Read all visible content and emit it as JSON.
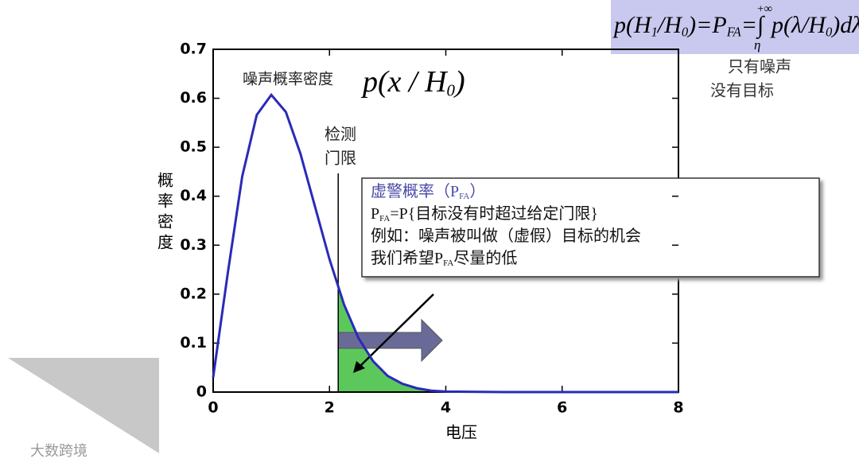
{
  "chart_data": {
    "type": "line",
    "x": [
      0,
      0.25,
      0.5,
      0.75,
      1,
      1.25,
      1.5,
      1.75,
      2,
      2.25,
      2.5,
      2.75,
      3,
      3.25,
      3.5,
      3.75,
      4,
      5,
      6,
      7,
      8
    ],
    "series": [
      {
        "name": "噪声概率密度",
        "color": "#2a2ab8",
        "values": [
          0.03,
          0.242,
          0.441,
          0.566,
          0.607,
          0.572,
          0.487,
          0.379,
          0.271,
          0.179,
          0.11,
          0.063,
          0.033,
          0.017,
          0.008,
          0.003,
          0.001,
          0,
          0,
          0,
          0
        ]
      }
    ],
    "curve_formula": [
      "p(x / H",
      "0",
      ")"
    ],
    "threshold": 2.15,
    "threshold_label": [
      "检测",
      "门限"
    ],
    "area_color": "#5cc85c",
    "xlim": [
      0,
      8
    ],
    "xticks": [
      0,
      2,
      4,
      6,
      8
    ],
    "ylim": [
      0,
      0.7
    ],
    "yticks": [
      0,
      0.1,
      0.2,
      0.3,
      0.4,
      0.5,
      0.6,
      0.7
    ],
    "x_label": "电压",
    "y_label": "概率密度",
    "side_note": [
      "只有噪声",
      "没有目标"
    ],
    "box_lines": [
      [
        "虚警概率（P",
        "FA",
        "）"
      ],
      [
        "P",
        "FA",
        "=P{目标没有时超过给定门限}"
      ],
      [
        "例如：噪声被叫做（虚假）目标的机会"
      ],
      [
        "我们希望P",
        "FA",
        "尽量的低"
      ]
    ],
    "formula": {
      "left": [
        "p(H",
        "1",
        "/H",
        "0",
        ")=P",
        "FA",
        "=∫"
      ],
      "upper": "+∞",
      "lower": "η",
      "right": [
        "p(λ/H",
        "0",
        ")dλ"
      ]
    },
    "watermark": "大数跨境"
  }
}
